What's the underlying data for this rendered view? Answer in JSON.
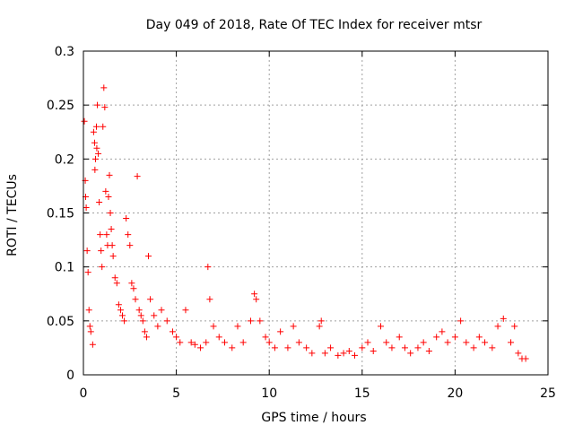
{
  "chart_data": {
    "type": "scatter",
    "title": "Day 049 of 2018, Rate Of TEC Index for receiver mtsr",
    "xlabel": "GPS time / hours",
    "ylabel": "ROTI / TECUs",
    "xlim": [
      0,
      25
    ],
    "ylim": [
      0,
      0.3
    ],
    "x_ticks": [
      0,
      5,
      10,
      15,
      20,
      25
    ],
    "x_tick_labels": [
      "0",
      "5",
      "10",
      "15",
      "20",
      "25"
    ],
    "y_ticks": [
      0,
      0.05,
      0.1,
      0.15,
      0.2,
      0.25,
      0.3
    ],
    "y_tick_labels": [
      "0",
      "0.05",
      "0.1",
      "0.15",
      "0.2",
      "0.25",
      "0.3"
    ],
    "grid": true,
    "marker": "+",
    "series": [
      {
        "name": "ROTI",
        "color": "#ff0000",
        "points": [
          [
            0.05,
            0.235
          ],
          [
            0.1,
            0.18
          ],
          [
            0.12,
            0.165
          ],
          [
            0.15,
            0.155
          ],
          [
            0.2,
            0.115
          ],
          [
            0.25,
            0.095
          ],
          [
            0.3,
            0.06
          ],
          [
            0.35,
            0.045
          ],
          [
            0.4,
            0.04
          ],
          [
            0.5,
            0.028
          ],
          [
            0.55,
            0.225
          ],
          [
            0.6,
            0.215
          ],
          [
            0.62,
            0.19
          ],
          [
            0.65,
            0.2
          ],
          [
            0.7,
            0.23
          ],
          [
            0.72,
            0.21
          ],
          [
            0.75,
            0.25
          ],
          [
            0.8,
            0.205
          ],
          [
            0.85,
            0.16
          ],
          [
            0.9,
            0.13
          ],
          [
            0.95,
            0.115
          ],
          [
            1.0,
            0.1
          ],
          [
            1.05,
            0.23
          ],
          [
            1.1,
            0.266
          ],
          [
            1.15,
            0.248
          ],
          [
            1.2,
            0.17
          ],
          [
            1.25,
            0.13
          ],
          [
            1.3,
            0.12
          ],
          [
            1.35,
            0.165
          ],
          [
            1.4,
            0.185
          ],
          [
            1.45,
            0.15
          ],
          [
            1.5,
            0.135
          ],
          [
            1.55,
            0.12
          ],
          [
            1.6,
            0.11
          ],
          [
            1.7,
            0.09
          ],
          [
            1.8,
            0.085
          ],
          [
            1.9,
            0.065
          ],
          [
            2.0,
            0.06
          ],
          [
            2.1,
            0.055
          ],
          [
            2.2,
            0.05
          ],
          [
            2.3,
            0.145
          ],
          [
            2.4,
            0.13
          ],
          [
            2.5,
            0.12
          ],
          [
            2.6,
            0.085
          ],
          [
            2.7,
            0.08
          ],
          [
            2.8,
            0.07
          ],
          [
            2.9,
            0.184
          ],
          [
            3.0,
            0.06
          ],
          [
            3.1,
            0.055
          ],
          [
            3.2,
            0.05
          ],
          [
            3.3,
            0.04
          ],
          [
            3.4,
            0.035
          ],
          [
            3.5,
            0.11
          ],
          [
            3.6,
            0.07
          ],
          [
            3.8,
            0.055
          ],
          [
            4.0,
            0.045
          ],
          [
            4.2,
            0.06
          ],
          [
            4.5,
            0.05
          ],
          [
            4.8,
            0.04
          ],
          [
            5.0,
            0.035
          ],
          [
            5.2,
            0.03
          ],
          [
            5.5,
            0.06
          ],
          [
            5.8,
            0.03
          ],
          [
            6.0,
            0.028
          ],
          [
            6.3,
            0.025
          ],
          [
            6.6,
            0.03
          ],
          [
            6.7,
            0.1
          ],
          [
            6.8,
            0.07
          ],
          [
            7.0,
            0.045
          ],
          [
            7.3,
            0.035
          ],
          [
            7.6,
            0.03
          ],
          [
            8.0,
            0.025
          ],
          [
            8.3,
            0.045
          ],
          [
            8.6,
            0.03
          ],
          [
            9.0,
            0.05
          ],
          [
            9.2,
            0.075
          ],
          [
            9.3,
            0.07
          ],
          [
            9.5,
            0.05
          ],
          [
            9.8,
            0.035
          ],
          [
            10.0,
            0.03
          ],
          [
            10.3,
            0.025
          ],
          [
            10.6,
            0.04
          ],
          [
            11.0,
            0.025
          ],
          [
            11.3,
            0.045
          ],
          [
            11.6,
            0.03
          ],
          [
            12.0,
            0.025
          ],
          [
            12.3,
            0.02
          ],
          [
            12.7,
            0.045
          ],
          [
            12.8,
            0.05
          ],
          [
            13.0,
            0.02
          ],
          [
            13.3,
            0.025
          ],
          [
            13.7,
            0.018
          ],
          [
            14.0,
            0.02
          ],
          [
            14.3,
            0.022
          ],
          [
            14.6,
            0.018
          ],
          [
            15.0,
            0.025
          ],
          [
            15.3,
            0.03
          ],
          [
            15.6,
            0.022
          ],
          [
            16.0,
            0.045
          ],
          [
            16.3,
            0.03
          ],
          [
            16.6,
            0.025
          ],
          [
            17.0,
            0.035
          ],
          [
            17.3,
            0.025
          ],
          [
            17.6,
            0.02
          ],
          [
            18.0,
            0.025
          ],
          [
            18.3,
            0.03
          ],
          [
            18.6,
            0.022
          ],
          [
            19.0,
            0.035
          ],
          [
            19.3,
            0.04
          ],
          [
            19.6,
            0.03
          ],
          [
            20.0,
            0.035
          ],
          [
            20.3,
            0.05
          ],
          [
            20.6,
            0.03
          ],
          [
            21.0,
            0.025
          ],
          [
            21.3,
            0.035
          ],
          [
            21.6,
            0.03
          ],
          [
            22.0,
            0.025
          ],
          [
            22.3,
            0.045
          ],
          [
            22.6,
            0.052
          ],
          [
            23.0,
            0.03
          ],
          [
            23.2,
            0.045
          ],
          [
            23.4,
            0.02
          ],
          [
            23.6,
            0.015
          ],
          [
            23.8,
            0.015
          ]
        ]
      }
    ]
  }
}
